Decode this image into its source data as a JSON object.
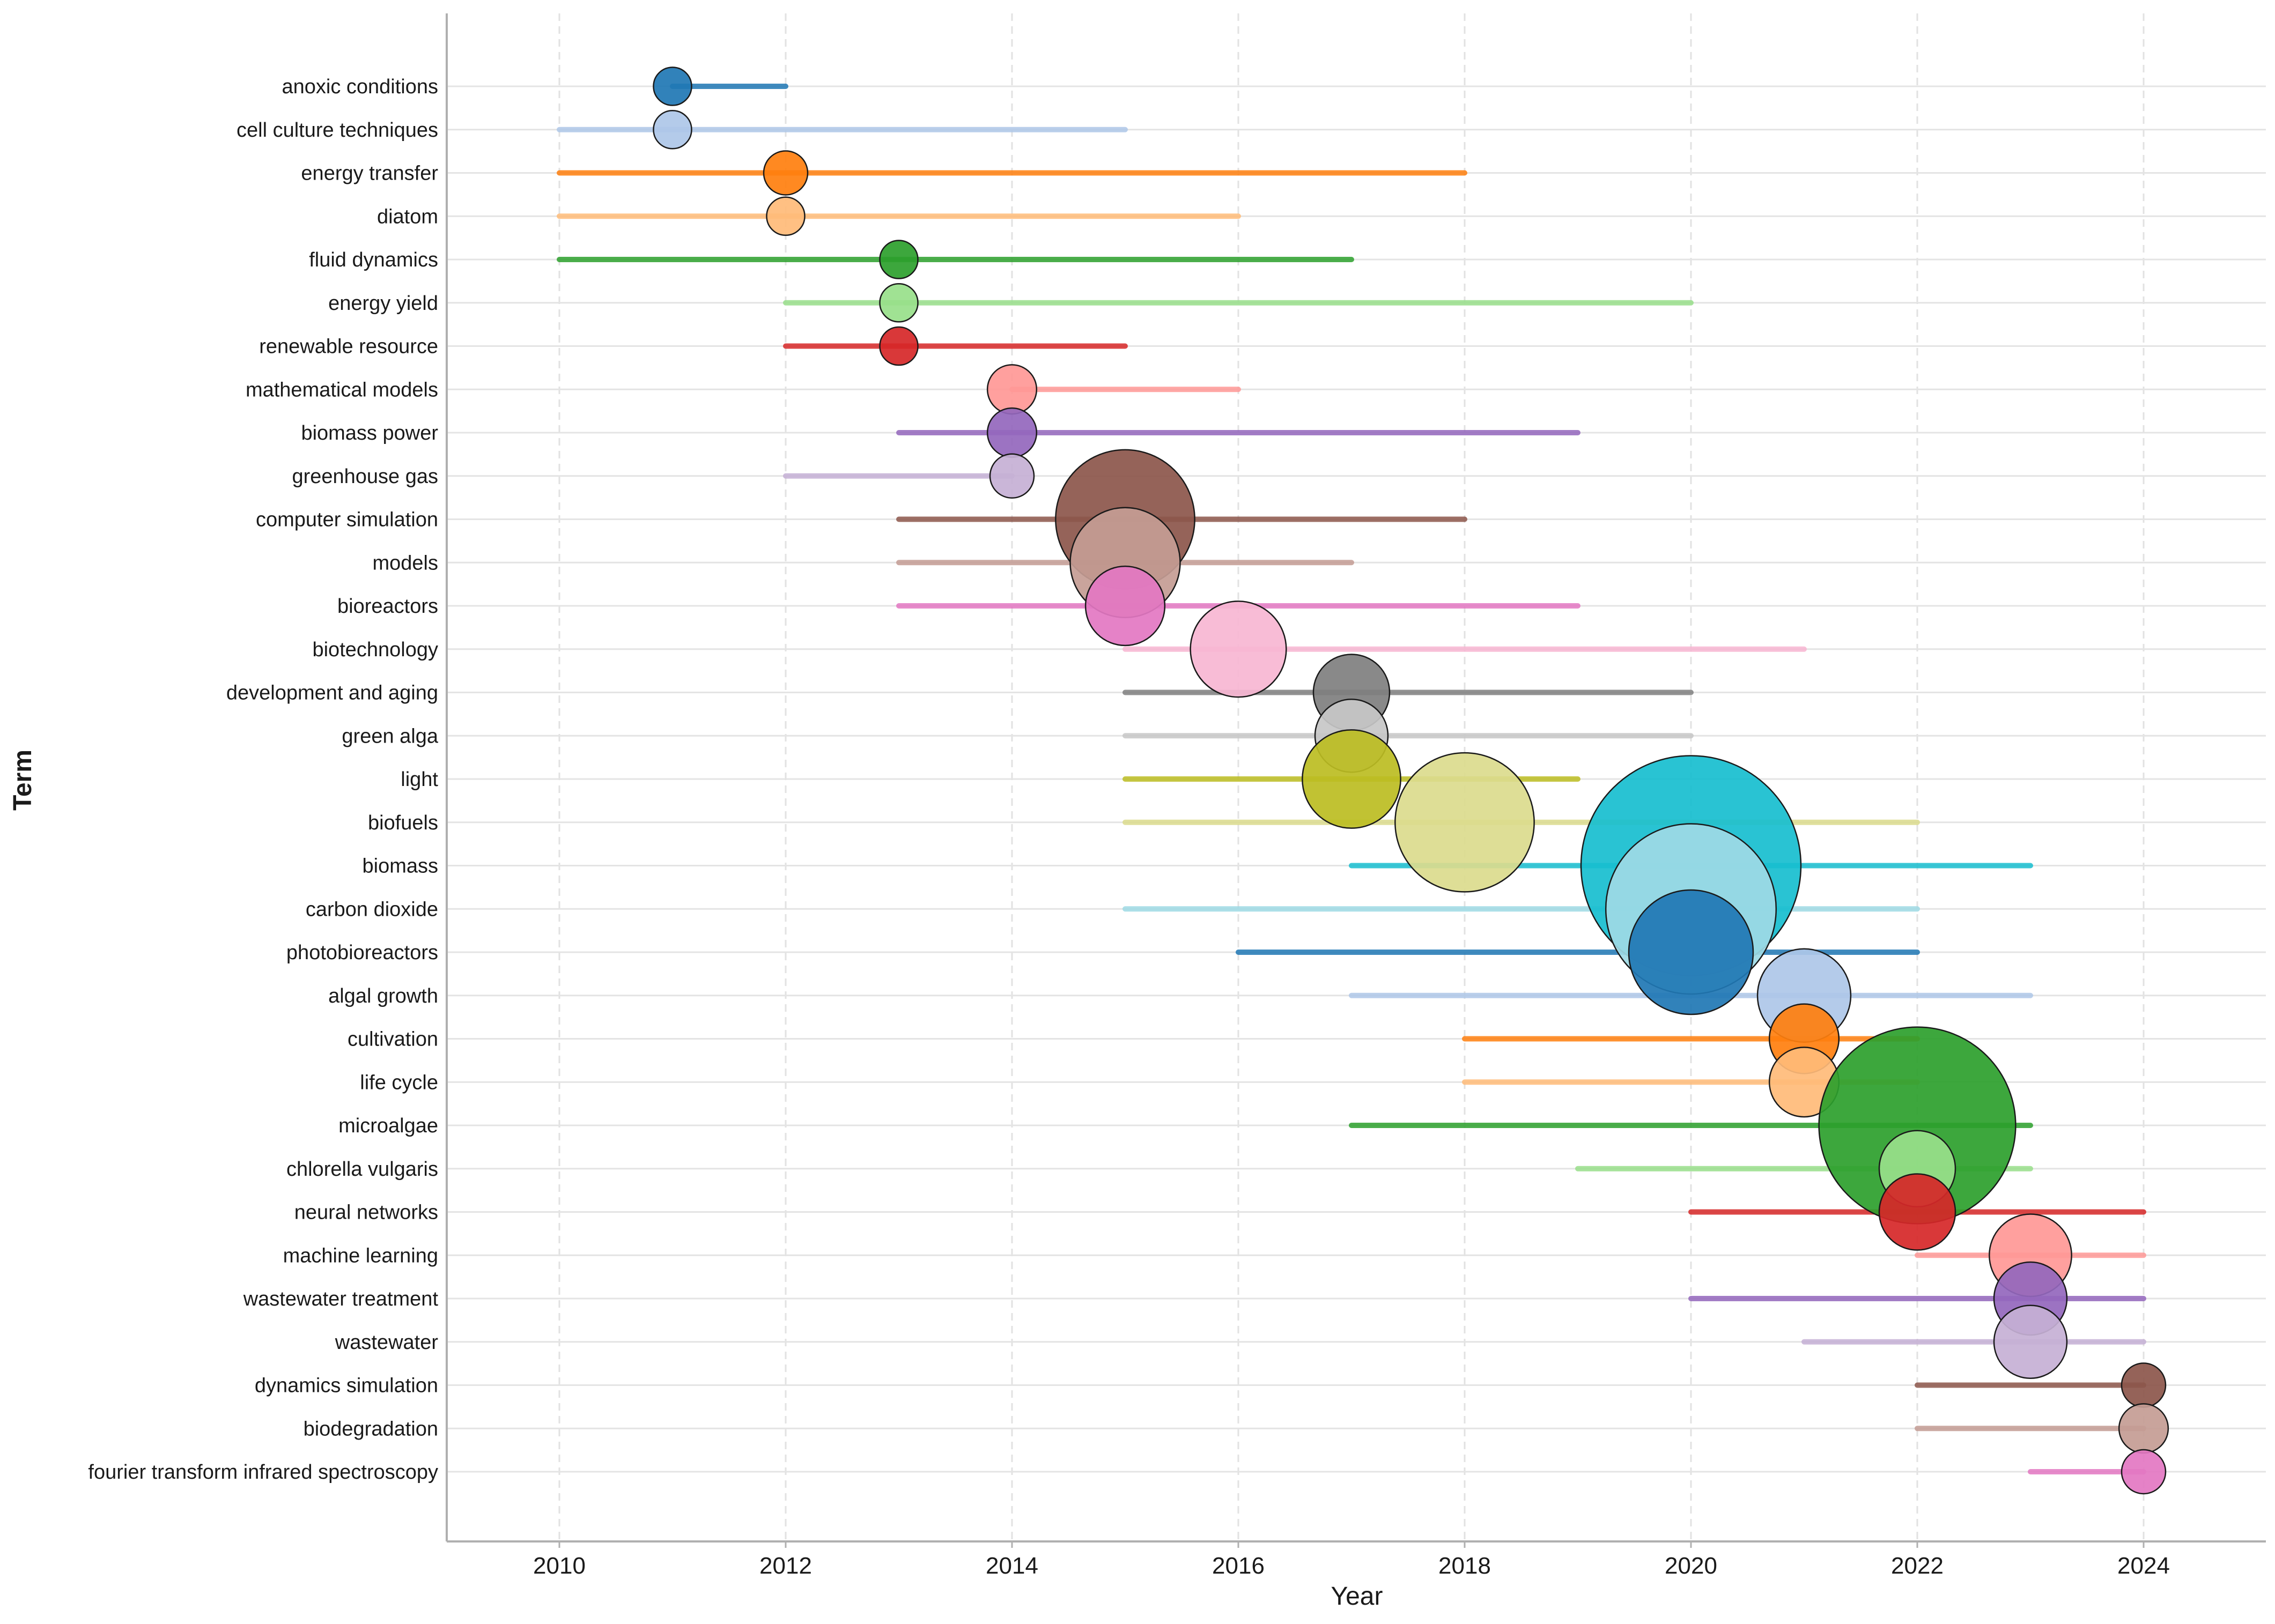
{
  "chart_data": {
    "type": "bubble-timeline",
    "title": "",
    "xlabel": "Year",
    "ylabel": "Term",
    "xlim": [
      2009,
      2025
    ],
    "xticks": [
      "2010",
      "2012",
      "2014",
      "2016",
      "2018",
      "2020",
      "2022",
      "2024"
    ],
    "grid": true,
    "terms": [
      {
        "name": "anoxic conditions",
        "start": 2011,
        "end": 2012,
        "peak": 2011,
        "size": 3,
        "color": "#1f77b4"
      },
      {
        "name": "cell culture techniques",
        "start": 2010,
        "end": 2015,
        "peak": 2011,
        "size": 3,
        "color": "#aec7e8"
      },
      {
        "name": "energy transfer",
        "start": 2010,
        "end": 2018,
        "peak": 2012,
        "size": 4,
        "color": "#ff7f0e"
      },
      {
        "name": "diatom",
        "start": 2010,
        "end": 2016,
        "peak": 2012,
        "size": 3,
        "color": "#ffbb78"
      },
      {
        "name": "fluid dynamics",
        "start": 2010,
        "end": 2017,
        "peak": 2013,
        "size": 3,
        "color": "#2ca02c"
      },
      {
        "name": "energy yield",
        "start": 2012,
        "end": 2020,
        "peak": 2013,
        "size": 3,
        "color": "#98df8a"
      },
      {
        "name": "renewable resource",
        "start": 2012,
        "end": 2015,
        "peak": 2013,
        "size": 3,
        "color": "#d62728"
      },
      {
        "name": "mathematical models",
        "start": 2014,
        "end": 2016,
        "peak": 2014,
        "size": 5,
        "color": "#ff9896"
      },
      {
        "name": "biomass power",
        "start": 2013,
        "end": 2019,
        "peak": 2014,
        "size": 5,
        "color": "#9467bd"
      },
      {
        "name": "greenhouse gas",
        "start": 2012,
        "end": 2014,
        "peak": 2014,
        "size": 4,
        "color": "#c5b0d5"
      },
      {
        "name": "computer simulation",
        "start": 2013,
        "end": 2018,
        "peak": 2015,
        "size": 40,
        "color": "#8c564b"
      },
      {
        "name": "models",
        "start": 2013,
        "end": 2017,
        "peak": 2015,
        "size": 25,
        "color": "#c49c94"
      },
      {
        "name": "bioreactors",
        "start": 2013,
        "end": 2019,
        "peak": 2015,
        "size": 13,
        "color": "#e377c2"
      },
      {
        "name": "biotechnology",
        "start": 2015,
        "end": 2021,
        "peak": 2016,
        "size": 19,
        "color": "#f7b6d2"
      },
      {
        "name": "development and aging",
        "start": 2015,
        "end": 2020,
        "peak": 2017,
        "size": 12,
        "color": "#7f7f7f"
      },
      {
        "name": "green alga",
        "start": 2015,
        "end": 2020,
        "peak": 2017,
        "size": 11,
        "color": "#c7c7c7"
      },
      {
        "name": "light",
        "start": 2015,
        "end": 2019,
        "peak": 2017,
        "size": 20,
        "color": "#bcbd22"
      },
      {
        "name": "biofuels",
        "start": 2015,
        "end": 2022,
        "peak": 2018,
        "size": 40,
        "color": "#dbdb8d"
      },
      {
        "name": "biomass",
        "start": 2017,
        "end": 2023,
        "peak": 2020,
        "size": 100,
        "color": "#17becf"
      },
      {
        "name": "carbon dioxide",
        "start": 2015,
        "end": 2022,
        "peak": 2020,
        "size": 60,
        "color": "#9edae5"
      },
      {
        "name": "photobioreactors",
        "start": 2016,
        "end": 2022,
        "peak": 2020,
        "size": 32,
        "color": "#1f77b4"
      },
      {
        "name": "algal growth",
        "start": 2017,
        "end": 2023,
        "peak": 2021,
        "size": 18,
        "color": "#aec7e8"
      },
      {
        "name": "cultivation",
        "start": 2018,
        "end": 2022,
        "peak": 2021,
        "size": 10,
        "color": "#ff7f0e"
      },
      {
        "name": "life cycle",
        "start": 2018,
        "end": 2022,
        "peak": 2021,
        "size": 10,
        "color": "#ffbb78"
      },
      {
        "name": "microalgae",
        "start": 2017,
        "end": 2023,
        "peak": 2022,
        "size": 80,
        "color": "#2ca02c"
      },
      {
        "name": "chlorella vulgaris",
        "start": 2019,
        "end": 2023,
        "peak": 2022,
        "size": 12,
        "color": "#98df8a"
      },
      {
        "name": "neural networks",
        "start": 2020,
        "end": 2024,
        "peak": 2022,
        "size": 12,
        "color": "#d62728"
      },
      {
        "name": "machine learning",
        "start": 2022,
        "end": 2024,
        "peak": 2023,
        "size": 14,
        "color": "#ff9896"
      },
      {
        "name": "wastewater treatment",
        "start": 2020,
        "end": 2024,
        "peak": 2023,
        "size": 11,
        "color": "#9467bd"
      },
      {
        "name": "wastewater",
        "start": 2021,
        "end": 2024,
        "peak": 2023,
        "size": 11,
        "color": "#c5b0d5"
      },
      {
        "name": "dynamics simulation",
        "start": 2022,
        "end": 2024,
        "peak": 2024,
        "size": 4,
        "color": "#8c564b"
      },
      {
        "name": "biodegradation",
        "start": 2022,
        "end": 2024,
        "peak": 2024,
        "size": 5,
        "color": "#c49c94"
      },
      {
        "name": "fourier transform infrared spectroscopy",
        "start": 2023,
        "end": 2024,
        "peak": 2024,
        "size": 4,
        "color": "#e377c2"
      }
    ]
  }
}
